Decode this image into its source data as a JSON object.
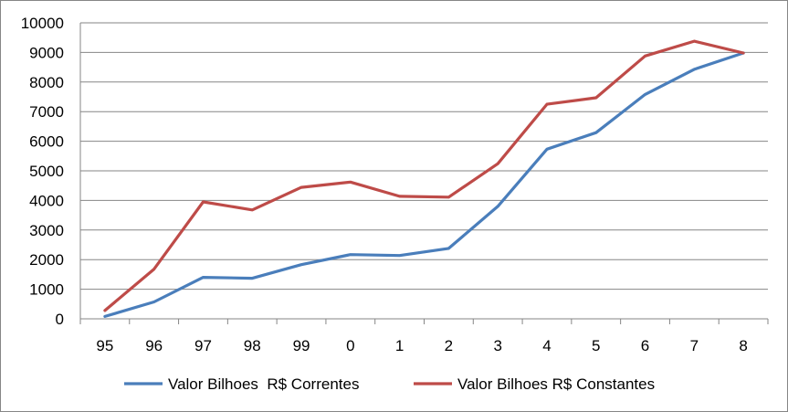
{
  "chart_data": {
    "type": "line",
    "categories": [
      "95",
      "96",
      "97",
      "98",
      "99",
      "0",
      "1",
      "2",
      "3",
      "4",
      "5",
      "6",
      "7",
      "8"
    ],
    "series": [
      {
        "name": "Valor Bilhoes  R$ Correntes",
        "color": "#4a7ebb",
        "values": [
          80,
          570,
          1400,
          1370,
          1830,
          2170,
          2140,
          2380,
          3800,
          5730,
          6290,
          7580,
          8430,
          8980
        ]
      },
      {
        "name": "Valor Bilhoes R$ Constantes",
        "color": "#be4b48",
        "values": [
          280,
          1680,
          3950,
          3680,
          4440,
          4620,
          4140,
          4110,
          5240,
          7250,
          7470,
          8880,
          9380,
          8980
        ]
      }
    ],
    "title": "",
    "xlabel": "",
    "ylabel": "",
    "ylim": [
      0,
      10000
    ],
    "yticks": [
      "0",
      "1000",
      "2000",
      "3000",
      "4000",
      "5000",
      "6000",
      "7000",
      "8000",
      "9000",
      "10000"
    ],
    "grid": true,
    "legend_position": "bottom"
  }
}
